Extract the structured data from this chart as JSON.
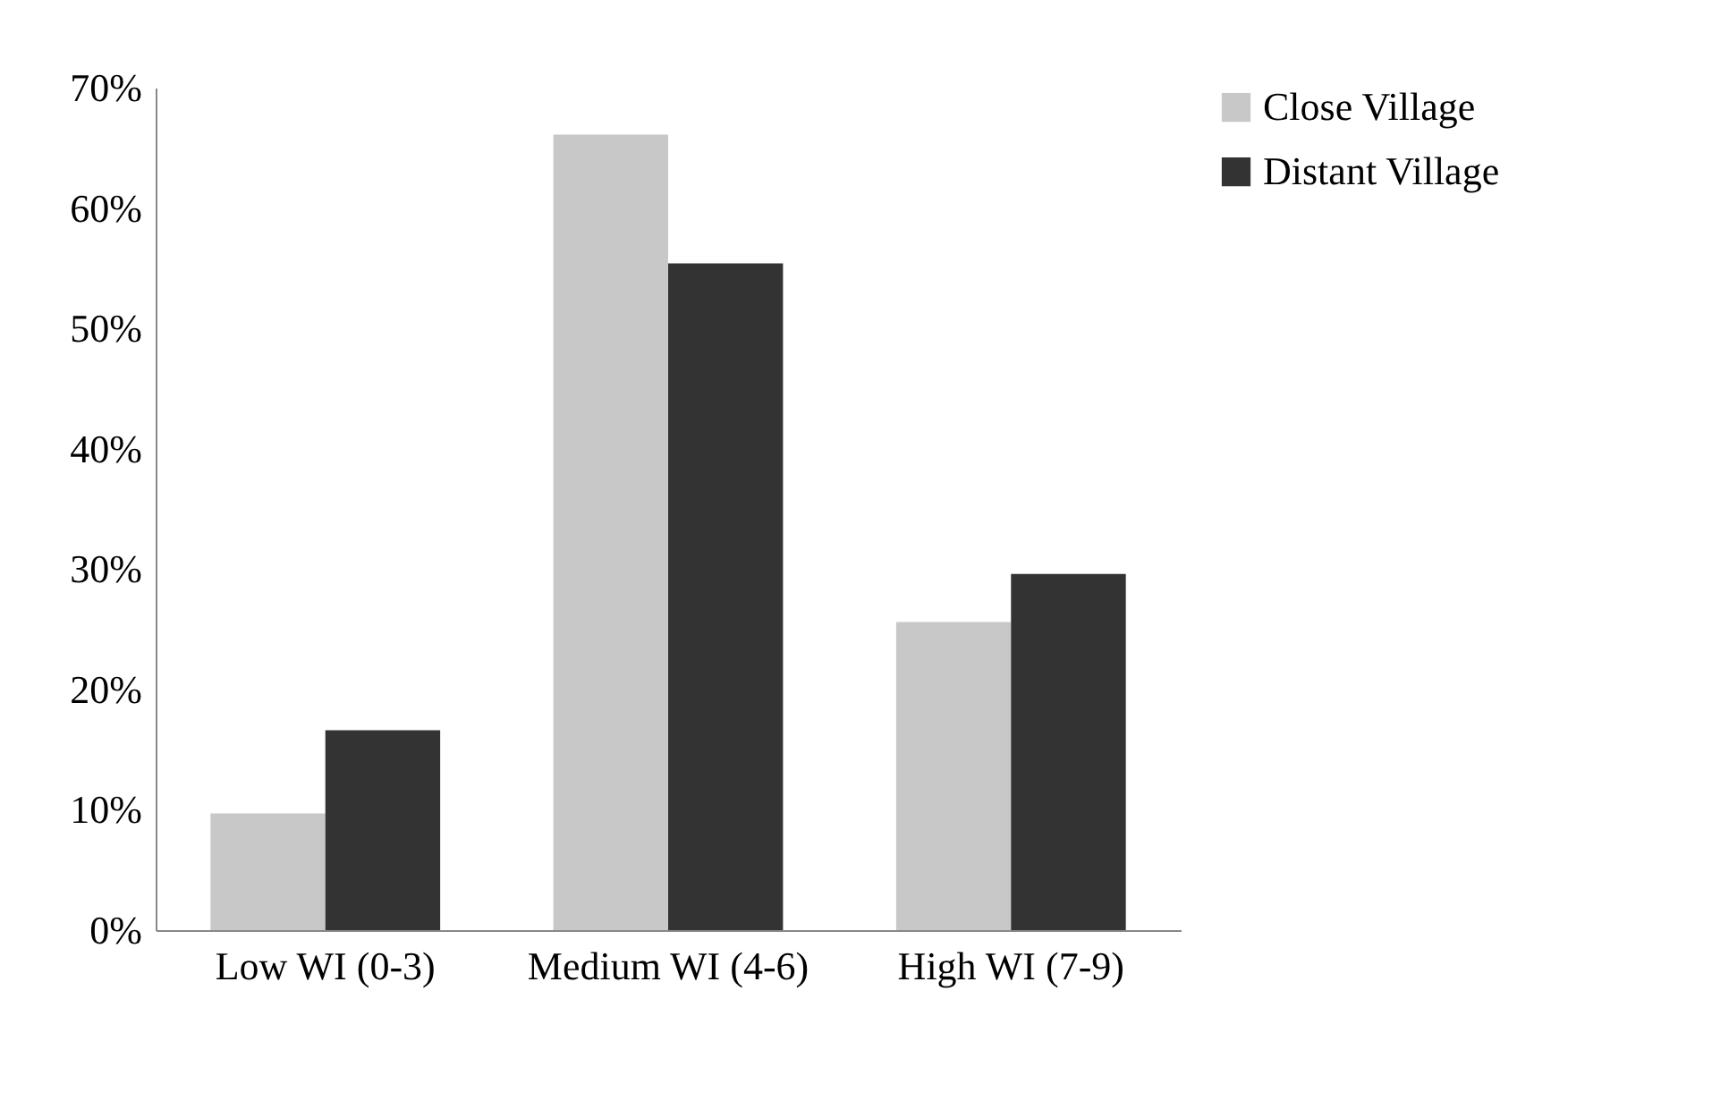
{
  "chart_data": {
    "type": "bar",
    "categories": [
      "Low WI (0-3)",
      "Medium WI (4-6)",
      "High WI (7-9)"
    ],
    "series": [
      {
        "name": "Close Village",
        "color": "#c8c8c8",
        "values": [
          9.7,
          66.1,
          25.6
        ]
      },
      {
        "name": "Distant Village",
        "color": "#333333",
        "values": [
          16.6,
          55.4,
          29.6
        ]
      }
    ],
    "ylim": [
      0,
      70
    ],
    "yticks": [
      {
        "value": 0,
        "label": "0%"
      },
      {
        "value": 10,
        "label": "10%"
      },
      {
        "value": 20,
        "label": "20%"
      },
      {
        "value": 30,
        "label": "30%"
      },
      {
        "value": 40,
        "label": "40%"
      },
      {
        "value": 50,
        "label": "50%"
      },
      {
        "value": 60,
        "label": "60%"
      },
      {
        "value": 70,
        "label": "70%"
      }
    ],
    "grid": false,
    "legend": "right"
  }
}
